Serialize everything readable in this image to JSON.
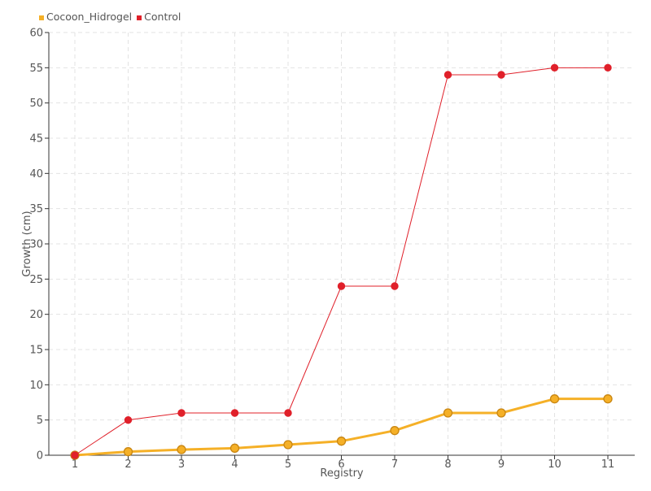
{
  "chart_data": {
    "type": "line",
    "xlabel": "Registry",
    "ylabel": "Growth (cm)",
    "categories": [
      "1",
      "2",
      "3",
      "4",
      "5",
      "6",
      "7",
      "8",
      "9",
      "10",
      "11"
    ],
    "ylim": [
      0,
      60
    ],
    "yticks": [
      0,
      5,
      10,
      15,
      20,
      25,
      30,
      35,
      40,
      45,
      50,
      55,
      60
    ],
    "grid": true,
    "legend_position": "top-left",
    "series": [
      {
        "name": "Cocoon_Hidrogel",
        "color": "#f5b027",
        "values": [
          0,
          0.5,
          0.8,
          1.0,
          1.5,
          2.0,
          3.5,
          6.0,
          6.0,
          8.0,
          8.0
        ]
      },
      {
        "name": "Control",
        "color": "#e0202a",
        "values": [
          0,
          5,
          6,
          6,
          6,
          24,
          24,
          54,
          54,
          55,
          55
        ]
      }
    ]
  }
}
